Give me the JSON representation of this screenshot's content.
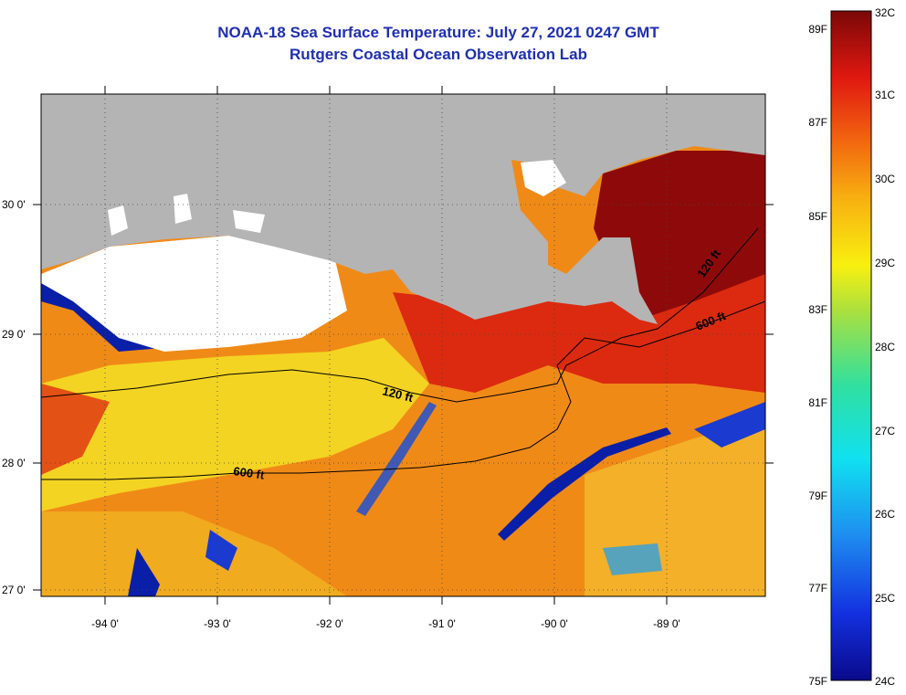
{
  "title": {
    "line1": "NOAA-18 Sea Surface Temperature:  July 27, 2021 0247 GMT",
    "line2": "Rutgers Coastal Ocean Observation Lab"
  },
  "map": {
    "lat_labels": [
      "30 0'",
      "29 0'",
      "28 0'",
      "27 0'"
    ],
    "lon_labels": [
      "-94 0'",
      "-93 0'",
      "-92 0'",
      "-91 0'",
      "-90 0'",
      "-89 0'"
    ],
    "contour_labels": [
      {
        "text": "120 ft"
      },
      {
        "text": "600 ft"
      },
      {
        "text": "120 ft"
      },
      {
        "text": "600 ft"
      }
    ],
    "colors": {
      "land": "#b4b4b4",
      "cloud": "#ffffff",
      "warm": "#d81f10",
      "hot": "#8e0a0a",
      "mid": "#f08a17",
      "cool": "#f3e124",
      "cold": "#0a1fa8"
    }
  },
  "colorbar": {
    "fahrenheit_labels": [
      "89F",
      "87F",
      "85F",
      "83F",
      "81F",
      "79F",
      "77F",
      "75F"
    ],
    "celsius_labels": [
      "32C",
      "31C",
      "30C",
      "29C",
      "28C",
      "27C",
      "26C",
      "25C",
      "24C"
    ]
  }
}
